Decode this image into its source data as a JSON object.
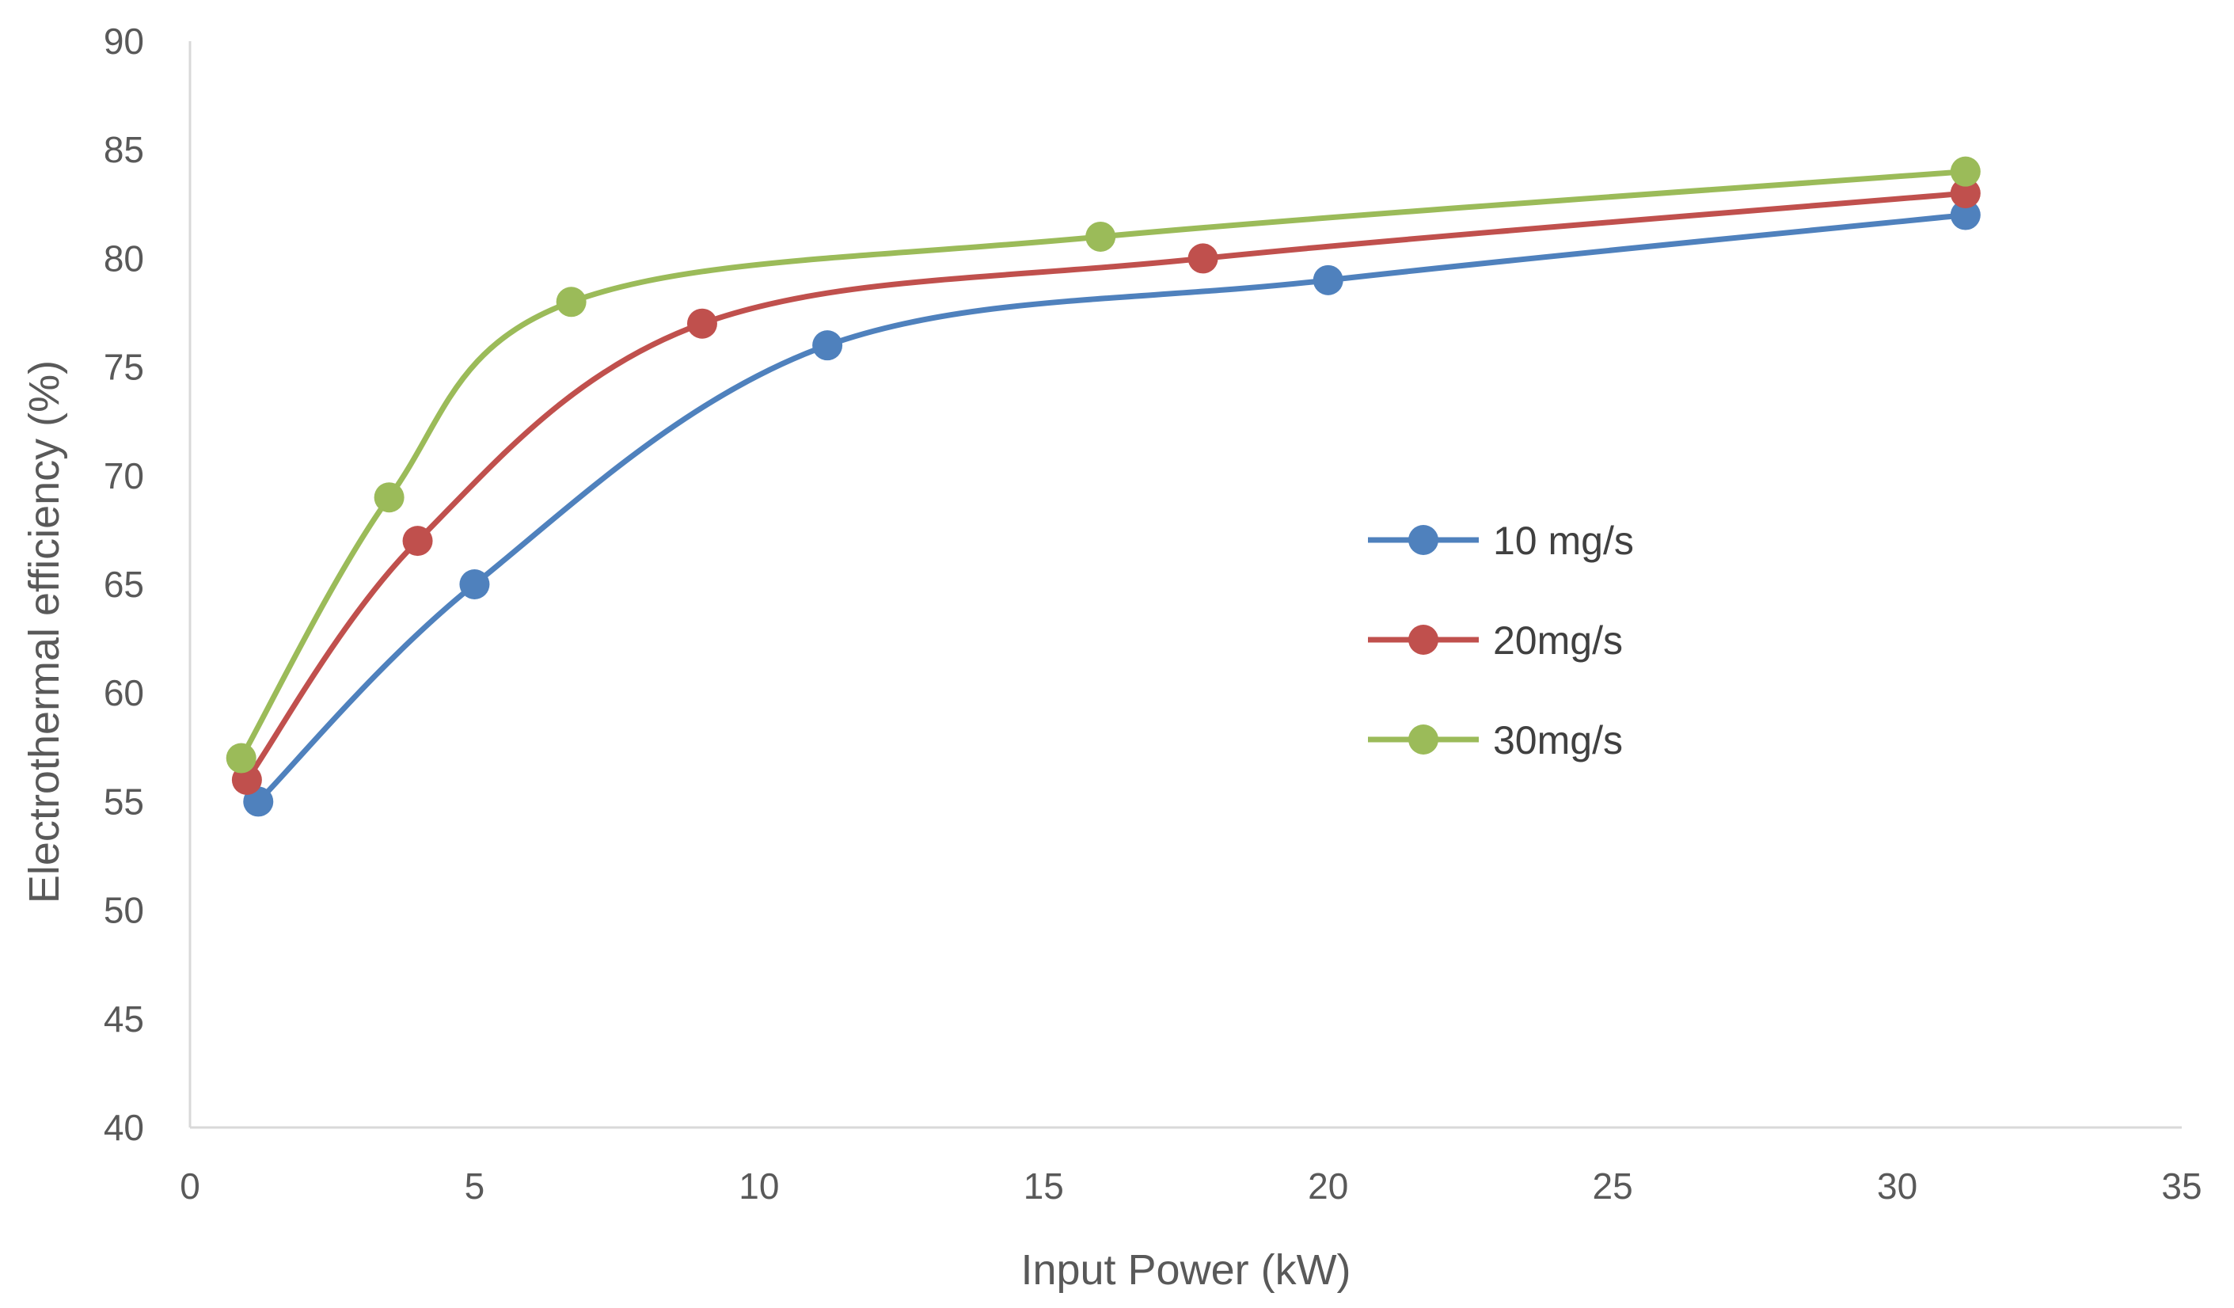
{
  "chart_data": {
    "type": "scatter",
    "title": "",
    "xlabel": "Input Power (kW)",
    "ylabel": "Electrothermal efficiency (%)",
    "xlim": [
      0,
      35
    ],
    "ylim": [
      40,
      90
    ],
    "xticks": [
      0,
      5,
      10,
      15,
      20,
      25,
      30,
      35
    ],
    "yticks": [
      40,
      45,
      50,
      55,
      60,
      65,
      70,
      75,
      80,
      85,
      90
    ],
    "grid": false,
    "smooth_lines": true,
    "markers": true,
    "legend_position": "right-center",
    "series": [
      {
        "name": "10 mg/s",
        "color": "#4f81bd",
        "x": [
          1.2,
          5.0,
          11.2,
          20.0,
          31.2
        ],
        "y": [
          55,
          65,
          76,
          79,
          82
        ]
      },
      {
        "name": "20mg/s",
        "color": "#c0504d",
        "x": [
          1.0,
          4.0,
          9.0,
          17.8,
          31.2
        ],
        "y": [
          56,
          67,
          77,
          80,
          83
        ]
      },
      {
        "name": "30mg/s",
        "color": "#9bbb59",
        "x": [
          0.9,
          3.5,
          6.7,
          16.0,
          31.2
        ],
        "y": [
          57,
          69,
          78,
          81,
          84
        ]
      }
    ]
  }
}
